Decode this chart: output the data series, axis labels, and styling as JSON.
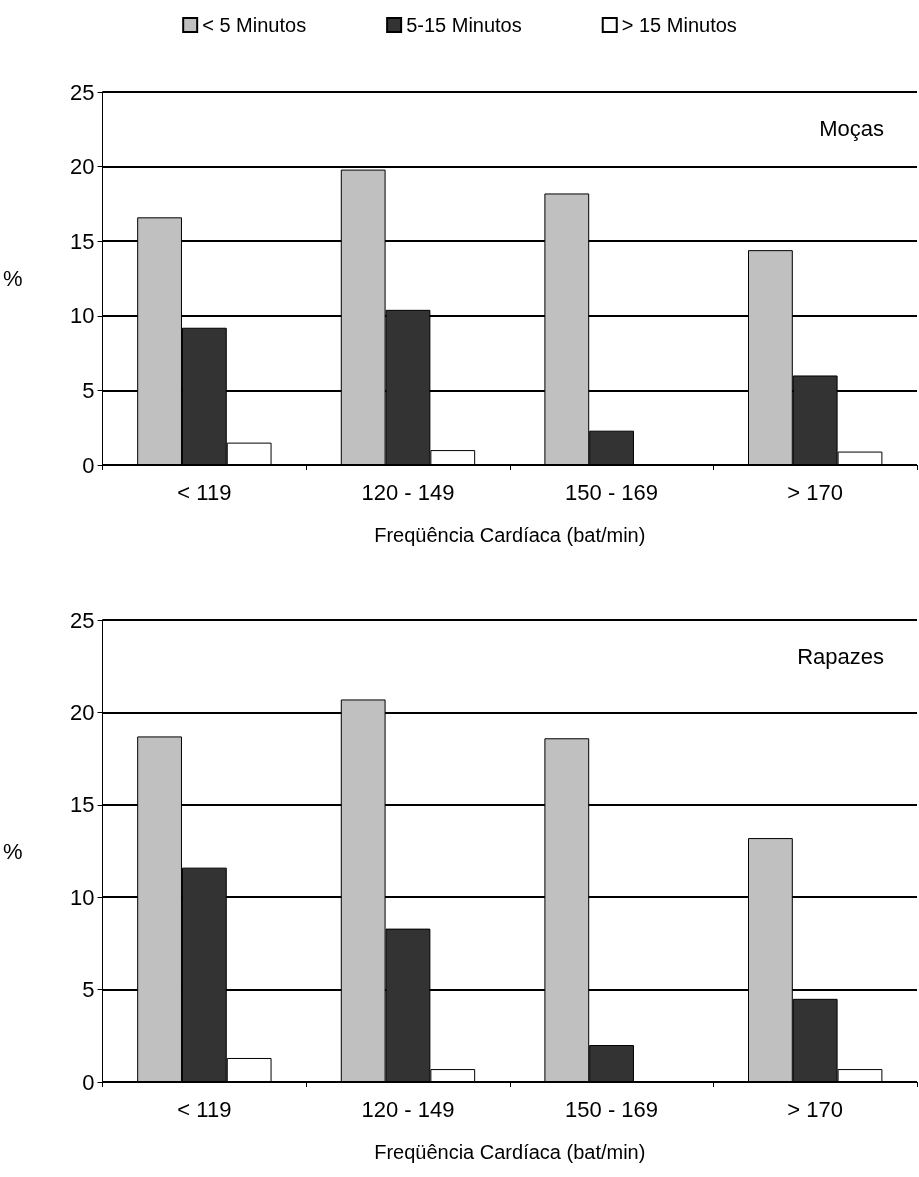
{
  "chart_data": [
    {
      "type": "bar",
      "title": "Moças",
      "xlabel": "Freqüência Cardíaca (bat/min)",
      "ylabel": "%",
      "categories": [
        "< 119",
        "120 - 149",
        "150 - 169",
        "> 170"
      ],
      "series": [
        {
          "name": "< 5 Minutos",
          "color": "#c0c0c0",
          "values": [
            16.6,
            19.8,
            18.2,
            14.4
          ]
        },
        {
          "name": "5-15 Minutos",
          "color": "#333333",
          "values": [
            9.2,
            10.4,
            2.3,
            6.0
          ]
        },
        {
          "name": "> 15 Minutos",
          "color": "#ffffff",
          "values": [
            1.5,
            1.0,
            0,
            0.9
          ]
        }
      ],
      "ylim": [
        0,
        25
      ],
      "yticks": [
        0,
        5,
        10,
        15,
        20,
        25
      ],
      "grid": "y",
      "legend": "top"
    },
    {
      "type": "bar",
      "title": "Rapazes",
      "xlabel": "Freqüência Cardíaca (bat/min)",
      "ylabel": "%",
      "categories": [
        "< 119",
        "120 - 149",
        "150 - 169",
        "> 170"
      ],
      "series": [
        {
          "color": "#c0c0c0",
          "values": [
            18.7,
            20.7,
            18.6,
            13.2
          ]
        },
        {
          "color": "#333333",
          "values": [
            11.6,
            8.3,
            2.0,
            4.5
          ]
        },
        {
          "color": "#ffffff",
          "values": [
            1.3,
            0.7,
            0,
            0.7
          ]
        }
      ],
      "ylim": [
        0,
        25
      ],
      "yticks": [
        0,
        5,
        10,
        15,
        20,
        25
      ],
      "grid": "y"
    }
  ]
}
